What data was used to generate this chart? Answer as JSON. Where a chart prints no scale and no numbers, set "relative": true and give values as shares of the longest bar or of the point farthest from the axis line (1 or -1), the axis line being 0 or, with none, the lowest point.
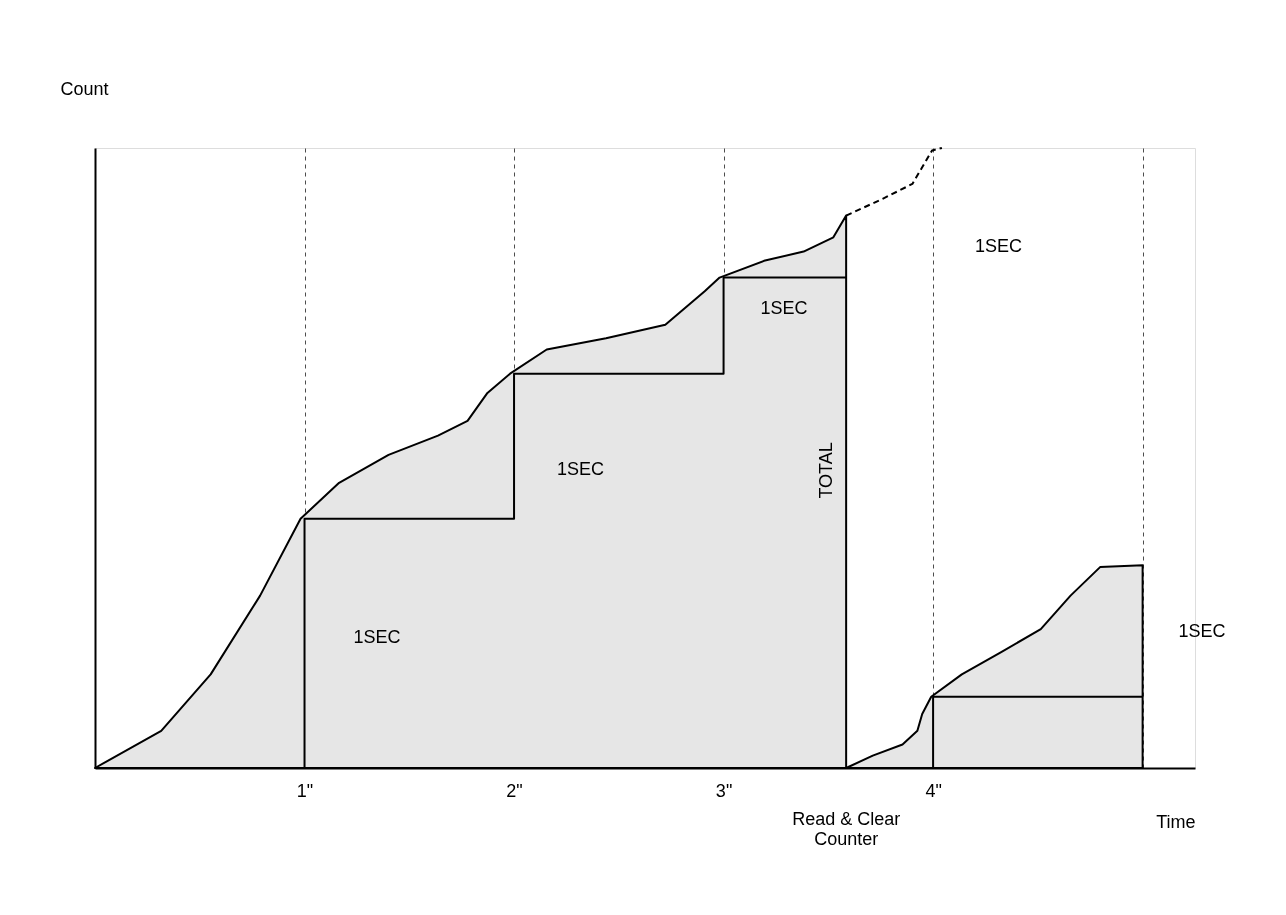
{
  "chart_data": {
    "type": "area",
    "relative": true,
    "xlabel": "Time",
    "ylabel": "Count",
    "xlim": [
      0,
      5.25
    ],
    "xticks": [
      {
        "value": 1,
        "label": "1\""
      },
      {
        "value": 2,
        "label": "2\""
      },
      {
        "value": 3,
        "label": "3\""
      },
      {
        "value": 4,
        "label": "4\""
      },
      {
        "value": 5,
        "label": null
      }
    ],
    "grid": "x",
    "series": [
      {
        "color": "#e6e6e6",
        "x": [
          0,
          0.316,
          0.552,
          0.788,
          0.981,
          1.165,
          1.401,
          1.637,
          1.778,
          1.873,
          1.981,
          2.156,
          2.439,
          2.722,
          2.91,
          2.981,
          3.193,
          3.382,
          3.524,
          3.585
        ],
        "values": [
          0,
          0.06,
          0.151,
          0.278,
          0.402,
          0.46,
          0.505,
          0.536,
          0.56,
          0.605,
          0.636,
          0.675,
          0.693,
          0.715,
          0.769,
          0.791,
          0.818,
          0.833,
          0.856,
          0.891
        ]
      },
      {
        "type": "line",
        "color": "#000000",
        "line_style": "dashed",
        "x": [
          3.585,
          3.759,
          3.901,
          3.948,
          3.995,
          4.042
        ],
        "values": [
          0.891,
          0.918,
          0.942,
          0.969,
          0.996,
          1.0
        ]
      },
      {
        "color": "#e6e6e6",
        "x": [
          3.585,
          3.712,
          3.854,
          3.925,
          3.948,
          3.991,
          4.137,
          4.325,
          4.514,
          4.656,
          4.797,
          5.0
        ],
        "values": [
          0,
          0.02,
          0.038,
          0.06,
          0.087,
          0.115,
          0.151,
          0.187,
          0.224,
          0.278,
          0.324,
          0.327
        ]
      },
      {
        "type": "line",
        "color": "#000000",
        "x": [
          1,
          1,
          2,
          2,
          3,
          3,
          3.585
        ],
        "values": [
          0,
          0.402,
          0.402,
          0.636,
          0.636,
          0.791,
          0.791
        ]
      },
      {
        "type": "line",
        "color": "#000000",
        "x": [
          4,
          4,
          5
        ],
        "values": [
          0,
          0.115,
          0.115
        ]
      }
    ],
    "annotations": [
      "1SEC",
      "1SEC",
      "1SEC",
      "1SEC",
      "1SEC",
      "TOTAL",
      "Read & Clear\nCounter"
    ]
  }
}
